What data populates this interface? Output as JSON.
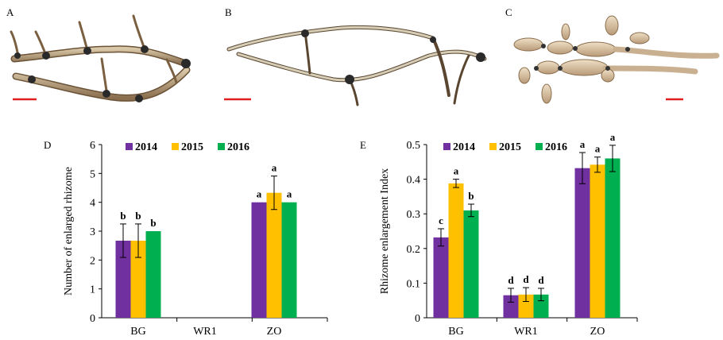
{
  "figure": {
    "photo_panels": [
      {
        "letter": "A"
      },
      {
        "letter": "B"
      },
      {
        "letter": "C"
      }
    ]
  },
  "colors": {
    "series_2014": "#7030A0",
    "series_2015": "#FFC000",
    "series_2016": "#00B050",
    "scale_bar": "#E02020"
  },
  "chart_data": [
    {
      "panel": "D",
      "type": "bar",
      "categories": [
        "BG",
        "WR1",
        "ZO"
      ],
      "ylabel": "Number of enlarged rhizome",
      "xlabel": "",
      "ylim": [
        0,
        6
      ],
      "yticks": [
        "0",
        "1",
        "2",
        "3",
        "4",
        "5",
        "6"
      ],
      "legend": "top-center",
      "grid": false,
      "series": [
        {
          "name": "2014",
          "values": [
            2.67,
            0,
            4.0
          ],
          "errors": [
            0.58,
            0,
            0
          ],
          "letters": [
            "b",
            "",
            "a"
          ]
        },
        {
          "name": "2015",
          "values": [
            2.67,
            0,
            4.33
          ],
          "errors": [
            0.58,
            0,
            0.58
          ],
          "letters": [
            "b",
            "",
            "a"
          ]
        },
        {
          "name": "2016",
          "values": [
            3.0,
            0,
            4.0
          ],
          "errors": [
            0,
            0,
            0
          ],
          "letters": [
            "b",
            "",
            "a"
          ]
        }
      ]
    },
    {
      "panel": "E",
      "type": "bar",
      "categories": [
        "BG",
        "WR1",
        "ZO"
      ],
      "ylabel": "Rhizome enlargement Index",
      "xlabel": "",
      "ylim": [
        0,
        0.5
      ],
      "yticks": [
        "0",
        "0.1",
        "0.2",
        "0.3",
        "0.4",
        "0.5"
      ],
      "legend": "top-center",
      "grid": false,
      "series": [
        {
          "name": "2014",
          "values": [
            0.232,
            0.065,
            0.432
          ],
          "errors": [
            0.025,
            0.02,
            0.045
          ],
          "letters": [
            "c",
            "d",
            "a"
          ]
        },
        {
          "name": "2015",
          "values": [
            0.388,
            0.067,
            0.442
          ],
          "errors": [
            0.012,
            0.02,
            0.022
          ],
          "letters": [
            "a",
            "d",
            "a"
          ]
        },
        {
          "name": "2016",
          "values": [
            0.31,
            0.067,
            0.46
          ],
          "errors": [
            0.018,
            0.018,
            0.038
          ],
          "letters": [
            "b",
            "d",
            "a"
          ]
        }
      ]
    }
  ]
}
